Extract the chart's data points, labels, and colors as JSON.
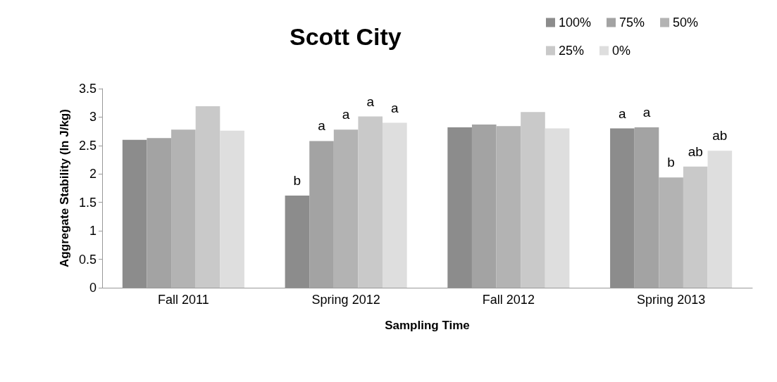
{
  "chart_data": {
    "type": "bar",
    "title": "Scott City",
    "xlabel": "Sampling Time",
    "ylabel": "Aggregate Stability (ln J/kg)",
    "categories": [
      "Fall 2011",
      "Spring 2012",
      "Fall 2012",
      "Spring 2013"
    ],
    "series": [
      {
        "name": "100%",
        "color": "#8c8c8c",
        "values": [
          2.6,
          1.62,
          2.82,
          2.8
        ],
        "value_labels": [
          null,
          "b",
          null,
          "a"
        ]
      },
      {
        "name": "75%",
        "color": "#a3a3a3",
        "values": [
          2.63,
          2.58,
          2.87,
          2.82
        ],
        "value_labels": [
          null,
          "a",
          null,
          "a"
        ]
      },
      {
        "name": "50%",
        "color": "#b3b3b3",
        "values": [
          2.78,
          2.78,
          2.84,
          1.94
        ],
        "value_labels": [
          null,
          "a",
          null,
          "b"
        ]
      },
      {
        "name": "25%",
        "color": "#c9c9c9",
        "values": [
          3.19,
          3.01,
          3.09,
          2.13
        ],
        "value_labels": [
          null,
          "a",
          null,
          "ab"
        ]
      },
      {
        "name": "0%",
        "color": "#dedede",
        "values": [
          2.76,
          2.9,
          2.8,
          2.41
        ],
        "value_labels": [
          null,
          "a",
          null,
          "ab"
        ]
      }
    ],
    "ylim": [
      0,
      3.5
    ],
    "yticks": [
      0,
      0.5,
      1,
      1.5,
      2,
      2.5,
      3,
      3.5
    ],
    "grid": false,
    "legend": "top right"
  }
}
